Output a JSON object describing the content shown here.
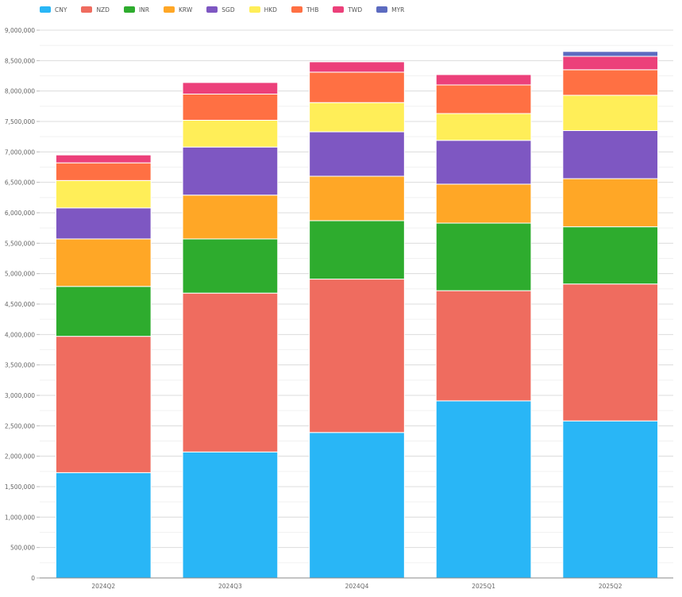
{
  "colors": {
    "CNY": "#29b6f6",
    "NZD": "#ef6c5f",
    "INR": "#2eac2e",
    "KRW": "#ffa726",
    "SGD": "#7e57c2",
    "HKD": "#ffee58",
    "THB": "#ff7043",
    "TWD": "#ec407a",
    "MYR": "#5c6bc0"
  },
  "chart_data": {
    "type": "bar",
    "stacked": true,
    "legend_position": "top-left",
    "grid": true,
    "ylim": [
      0,
      9000000
    ],
    "y_ticks": [
      "0",
      "500,000",
      "1,000,000",
      "1,500,000",
      "2,000,000",
      "2,500,000",
      "3,000,000",
      "3,500,000",
      "4,000,000",
      "4,500,000",
      "5,000,000",
      "5,500,000",
      "6,000,000",
      "6,500,000",
      "7,000,000",
      "7,500,000",
      "8,000,000",
      "8,500,000",
      "9,000,000"
    ],
    "categories": [
      "2024Q2",
      "2024Q3",
      "2024Q4",
      "2025Q1",
      "2025Q2"
    ],
    "series": [
      {
        "name": "CNY",
        "values": [
          1730000,
          2070000,
          2390000,
          2910000,
          2580000
        ]
      },
      {
        "name": "NZD",
        "values": [
          2240000,
          2610000,
          2520000,
          1810000,
          2250000
        ]
      },
      {
        "name": "INR",
        "values": [
          820000,
          890000,
          960000,
          1110000,
          940000
        ]
      },
      {
        "name": "KRW",
        "values": [
          780000,
          720000,
          730000,
          640000,
          790000
        ]
      },
      {
        "name": "SGD",
        "values": [
          510000,
          790000,
          730000,
          720000,
          790000
        ]
      },
      {
        "name": "HKD",
        "values": [
          450000,
          440000,
          480000,
          440000,
          580000
        ]
      },
      {
        "name": "THB",
        "values": [
          290000,
          430000,
          500000,
          470000,
          420000
        ]
      },
      {
        "name": "TWD",
        "values": [
          130000,
          190000,
          170000,
          170000,
          220000
        ]
      },
      {
        "name": "MYR",
        "values": [
          0,
          0,
          0,
          0,
          80000
        ]
      }
    ]
  }
}
